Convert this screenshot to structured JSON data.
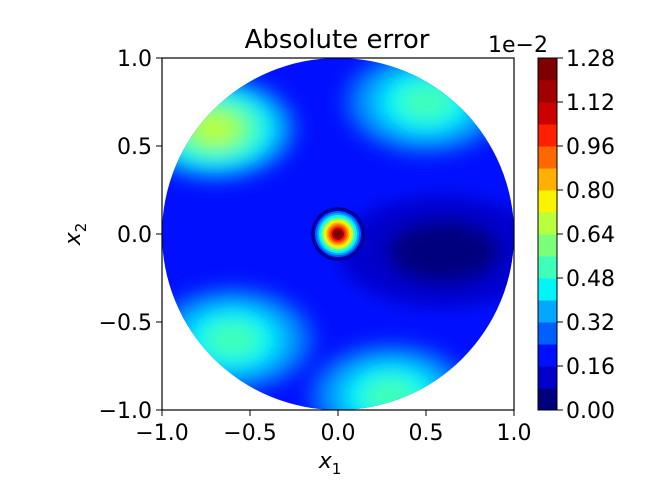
{
  "chart_data": {
    "type": "heatmap",
    "title": "Absolute error",
    "xlabel": "x",
    "xlabel_sub": "1",
    "ylabel": "x",
    "ylabel_sub": "2",
    "xlim": [
      -1.0,
      1.0
    ],
    "ylim": [
      -1.0,
      1.0
    ],
    "domain_shape": "disk of radius 1 centred at (0, 0)",
    "x_ticks": [
      "−1.0",
      "−0.5",
      "0.0",
      "0.5",
      "1.0"
    ],
    "x_tick_values": [
      -1.0,
      -0.5,
      0.0,
      0.5,
      1.0
    ],
    "y_ticks": [
      "−1.0",
      "−0.5",
      "0.0",
      "0.5",
      "1.0"
    ],
    "y_tick_values": [
      -1.0,
      -0.5,
      0.0,
      0.5,
      1.0
    ],
    "colormap": "jet",
    "colorbar": {
      "offset_label": "1e−2",
      "min": 0.0,
      "max": 1.28,
      "tick_labels": [
        "0.00",
        "0.16",
        "0.32",
        "0.48",
        "0.64",
        "0.80",
        "0.96",
        "1.12",
        "1.28"
      ],
      "tick_values": [
        0.0,
        0.16,
        0.32,
        0.48,
        0.64,
        0.8,
        0.96,
        1.12,
        1.28
      ],
      "levels": [
        0.0,
        0.08,
        0.16,
        0.24,
        0.32,
        0.4,
        0.48,
        0.56,
        0.64,
        0.72,
        0.8,
        0.88,
        0.96,
        1.04,
        1.12,
        1.2,
        1.28
      ],
      "level_colors": [
        "#00007f",
        "#0000cd",
        "#0010ff",
        "#0060ff",
        "#00a8ff",
        "#00f4f8",
        "#3dffb9",
        "#7cff7a",
        "#b9ff3d",
        "#f8f400",
        "#ffb000",
        "#ff6800",
        "#ff2000",
        "#cd0000",
        "#a00000",
        "#7f0000"
      ]
    },
    "features": [
      {
        "x": 0.0,
        "y": 0.0,
        "value": 1.28,
        "description": "sharp peak at the origin"
      },
      {
        "x": -0.7,
        "y": 0.6,
        "value": 0.7
      },
      {
        "x": 0.5,
        "y": 0.75,
        "value": 0.55
      },
      {
        "x": -0.6,
        "y": -0.6,
        "value": 0.55
      },
      {
        "x": 0.3,
        "y": -0.92,
        "value": 0.52
      },
      {
        "x": 0.6,
        "y": -0.1,
        "value": 0.03,
        "description": "low-error region"
      }
    ]
  }
}
